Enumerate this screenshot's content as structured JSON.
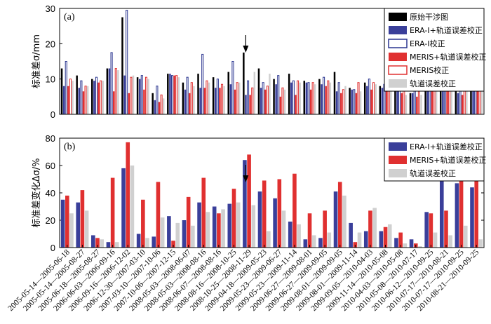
{
  "chart_data": [
    {
      "type": "bar",
      "annotation": "(a)",
      "ylabel": "标准差σ/mm",
      "categories": [
        "2005-05-14—2005-06-18",
        "2005-05-14—2005-08-27",
        "2005-06-18—2005-08-27",
        "2006-06-03—2006-09-16",
        "2006-09-16—2006-12-02",
        "2006-12-30—2007-03-10",
        "2007-03-10—2007-10-06",
        "2007-10-06—2007-12-15",
        "2008-05-03—2008-06-07",
        "2008-05-03—2008-08-16",
        "2008-06-07—2008-08-16",
        "2008-08-16—2008-10-25",
        "2008-10-25—2008-11-29",
        "2009-04-18—2009-05-23",
        "2009-05-23—2009-06-27",
        "2009-05-23—2009-11-14",
        "2009-06-27—2009-08-01",
        "2009-06-27—2009-09-05",
        "2009-08-01—2009-09-05",
        "2009-08-01—2009-11-14",
        "2009-09-05—2010-04-03",
        "2009-11-14—2010-05-08",
        "2010-04-03—2010-05-08",
        "2010-05-08—2010-07-17",
        "2010-06-12—2010-09-25",
        "2010-07-17—2010-08-21",
        "2010-07-17—2010-09-25",
        "2010-08-21—2010-09-25"
      ],
      "ylim": [
        0,
        30
      ],
      "yticks": [
        0,
        10,
        20,
        30
      ],
      "legend": "upper right",
      "series": [
        {
          "name": "原始干涉图",
          "color": "#000000",
          "outline": false,
          "values": [
            13,
            11,
            10,
            13,
            27.5,
            10.5,
            6,
            11.5,
            9,
            11.5,
            10.5,
            12,
            17.5,
            13,
            10,
            11.5,
            9.5,
            10,
            12,
            7.5,
            9,
            8,
            7,
            6,
            11,
            15,
            11.5,
            13.5
          ]
        },
        {
          "name": "ERA-I+轨道误差校正",
          "color": "#3a3f9a",
          "outline": false,
          "values": [
            8,
            7.5,
            9.5,
            13,
            11,
            10,
            4,
            11.5,
            7,
            7.5,
            7.5,
            8.5,
            5.5,
            7.5,
            8.5,
            9,
            9,
            8.5,
            6.5,
            7,
            8,
            7.5,
            7,
            6,
            8,
            14,
            6,
            7.5
          ]
        },
        {
          "name": "ERA-I校正",
          "color": "#2a3590",
          "outline": true,
          "values": [
            15,
            9.5,
            10.5,
            17.5,
            29.5,
            11,
            8,
            11,
            10.5,
            17,
            10,
            15,
            9.5,
            9,
            11,
            9.5,
            9,
            10.5,
            9,
            7,
            10,
            8.5,
            9.5,
            8,
            11,
            13.5,
            9.5,
            11.5
          ]
        },
        {
          "name": "MERIS+轨道误差校正",
          "color": "#e03030",
          "outline": false,
          "values": [
            8,
            6.5,
            9,
            6.5,
            6,
            7,
            3.5,
            11,
            6,
            7.5,
            7.5,
            7,
            5.5,
            7,
            5,
            5.5,
            7,
            8,
            6,
            6,
            7,
            7,
            6,
            5,
            8.5,
            13,
            5.5,
            7.5
          ]
        },
        {
          "name": "MERIS校正",
          "color": "#e03030",
          "outline": true,
          "values": [
            10,
            8,
            9.5,
            13,
            10.5,
            10.5,
            5.5,
            11,
            9,
            9.5,
            8.5,
            9,
            7.5,
            8,
            7.5,
            9.5,
            9,
            9.5,
            7,
            9,
            9,
            8,
            8,
            7.5,
            10.5,
            14,
            7.5,
            8
          ]
        },
        {
          "name": "轨道误差校正",
          "color": "#d0d0d0",
          "outline": false,
          "values": [
            9.5,
            8,
            9.5,
            12.5,
            11,
            10,
            4.5,
            10.5,
            8,
            9,
            8,
            9,
            12,
            11.5,
            7,
            9,
            8.5,
            9,
            8,
            6.5,
            8.5,
            8,
            5.5,
            5.5,
            10,
            13,
            10,
            12.5
          ]
        }
      ]
    },
    {
      "type": "bar",
      "annotation": "(b)",
      "ylabel": "标准差变化Δσ/%",
      "ylim": [
        0,
        80
      ],
      "yticks": [
        0,
        20,
        40,
        60,
        80
      ],
      "legend": "upper right",
      "series": [
        {
          "name": "ERA-I+轨道误差校正",
          "color": "#3a3f9a",
          "values": [
            35,
            33,
            9,
            4,
            58,
            10,
            8,
            23,
            20,
            33,
            30,
            32,
            64,
            41,
            36,
            19,
            6,
            7,
            41,
            18,
            12,
            12,
            7,
            6,
            26,
            53,
            47,
            44
          ]
        },
        {
          "name": "MERIS+轨道误差校正",
          "color": "#e03030",
          "values": [
            38,
            42,
            7,
            51,
            77,
            35,
            48,
            5,
            37,
            51,
            25,
            43,
            68,
            49,
            50,
            54,
            25,
            27,
            48,
            4,
            27,
            15,
            11,
            3,
            25,
            27,
            54,
            53
          ]
        },
        {
          "name": "轨道误差校正",
          "color": "#d0d0d0",
          "values": [
            25,
            27,
            6,
            4,
            60,
            7,
            22,
            18,
            16,
            26,
            28,
            33,
            31,
            12,
            27,
            17,
            9,
            11,
            38,
            11,
            29,
            17,
            3,
            1,
            11,
            9,
            16,
            6
          ]
        }
      ]
    }
  ]
}
